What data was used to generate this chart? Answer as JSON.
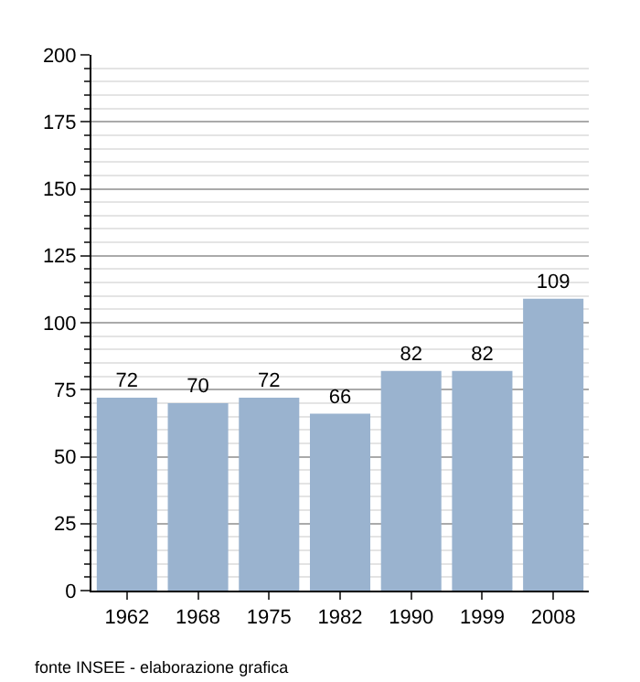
{
  "chart_data": {
    "type": "bar",
    "categories": [
      "1962",
      "1968",
      "1975",
      "1982",
      "1990",
      "1999",
      "2008"
    ],
    "values": [
      72,
      70,
      72,
      66,
      82,
      82,
      109
    ],
    "color": "#9ab3cf",
    "data_labels": true,
    "ylim": [
      0,
      200
    ],
    "yticks": [
      0,
      {
        "value": 5,
        "label": null
      },
      {
        "value": 10,
        "label": null
      },
      {
        "value": 15,
        "label": null
      },
      {
        "value": 20,
        "label": null
      },
      25,
      {
        "value": 30,
        "label": null
      },
      {
        "value": 35,
        "label": null
      },
      {
        "value": 40,
        "label": null
      },
      {
        "value": 45,
        "label": null
      },
      50,
      {
        "value": 55,
        "label": null
      },
      {
        "value": 60,
        "label": null
      },
      {
        "value": 65,
        "label": null
      },
      {
        "value": 70,
        "label": null
      },
      75,
      {
        "value": 80,
        "label": null
      },
      {
        "value": 85,
        "label": null
      },
      {
        "value": 90,
        "label": null
      },
      {
        "value": 95,
        "label": null
      },
      100,
      {
        "value": 105,
        "label": null
      },
      {
        "value": 110,
        "label": null
      },
      {
        "value": 115,
        "label": null
      },
      {
        "value": 120,
        "label": null
      },
      125,
      {
        "value": 130,
        "label": null
      },
      {
        "value": 135,
        "label": null
      },
      {
        "value": 140,
        "label": null
      },
      {
        "value": 145,
        "label": null
      },
      150,
      {
        "value": 155,
        "label": null
      },
      {
        "value": 160,
        "label": null
      },
      {
        "value": 165,
        "label": null
      },
      {
        "value": 170,
        "label": null
      },
      175,
      {
        "value": 180,
        "label": null
      },
      {
        "value": 185,
        "label": null
      },
      {
        "value": 190,
        "label": null
      },
      {
        "value": 195,
        "label": null
      },
      200
    ],
    "grid": "y",
    "annotations": [
      "fonte INSEE - elaborazione grafica"
    ]
  }
}
